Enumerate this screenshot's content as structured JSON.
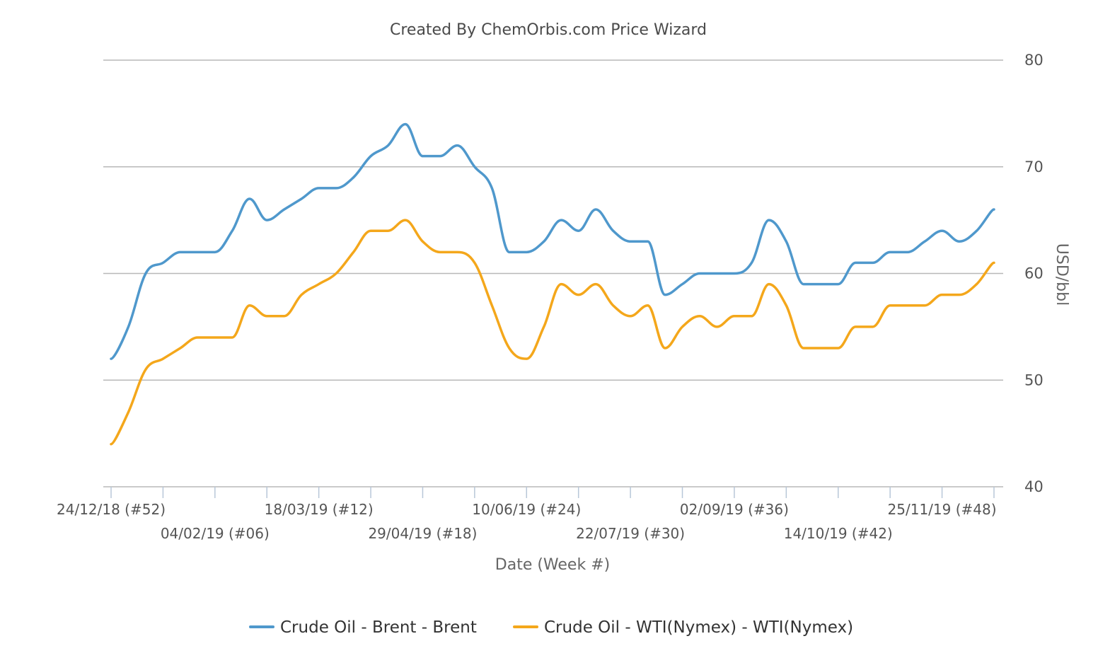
{
  "chart_data": {
    "type": "line",
    "title": "Created By ChemOrbis.com Price Wizard",
    "xlabel": "Date (Week #)",
    "ylabel": "USD/bbl",
    "ylim": [
      40,
      80
    ],
    "yticks": [
      40,
      50,
      60,
      70,
      80
    ],
    "grid": true,
    "legend_position": "bottom",
    "x_tick_labels": [
      "24/12/18 (#52)",
      "04/02/19 (#06)",
      "18/03/19 (#12)",
      "29/04/19 (#18)",
      "10/06/19 (#24)",
      "22/07/19 (#30)",
      "02/09/19 (#36)",
      "14/10/19 (#42)",
      "25/11/19 (#48)"
    ],
    "x_tick_weeks": [
      0,
      6,
      12,
      18,
      24,
      30,
      36,
      42,
      48
    ],
    "x_minor_ticks": [
      0,
      3,
      6,
      9,
      12,
      15,
      18,
      21,
      24,
      27,
      30,
      33,
      36,
      39,
      42,
      45,
      48,
      51
    ],
    "series": [
      {
        "name": "Crude Oil - Brent - Brent",
        "color": "#4f98cc",
        "values": [
          52,
          55,
          60,
          61,
          62,
          62,
          62,
          64,
          67,
          65,
          66,
          67,
          68,
          68,
          69,
          71,
          72,
          74,
          71,
          71,
          72,
          70,
          68,
          62,
          62,
          63,
          65,
          64,
          66,
          64,
          63,
          63,
          58,
          59,
          60,
          60,
          60,
          61,
          65,
          63,
          59,
          59,
          59,
          61,
          61,
          62,
          62,
          63,
          64,
          63,
          64,
          66
        ]
      },
      {
        "name": "Crude Oil - WTI(Nymex) - WTI(Nymex)",
        "color": "#f4a71b",
        "values": [
          44,
          47,
          51,
          52,
          53,
          54,
          54,
          54,
          57,
          56,
          56,
          58,
          59,
          60,
          62,
          64,
          64,
          65,
          63,
          62,
          62,
          61,
          57,
          53,
          52,
          55,
          59,
          58,
          59,
          57,
          56,
          57,
          53,
          55,
          56,
          55,
          56,
          56,
          59,
          57,
          53,
          53,
          53,
          55,
          55,
          57,
          57,
          57,
          58,
          58,
          59,
          61
        ]
      }
    ]
  }
}
